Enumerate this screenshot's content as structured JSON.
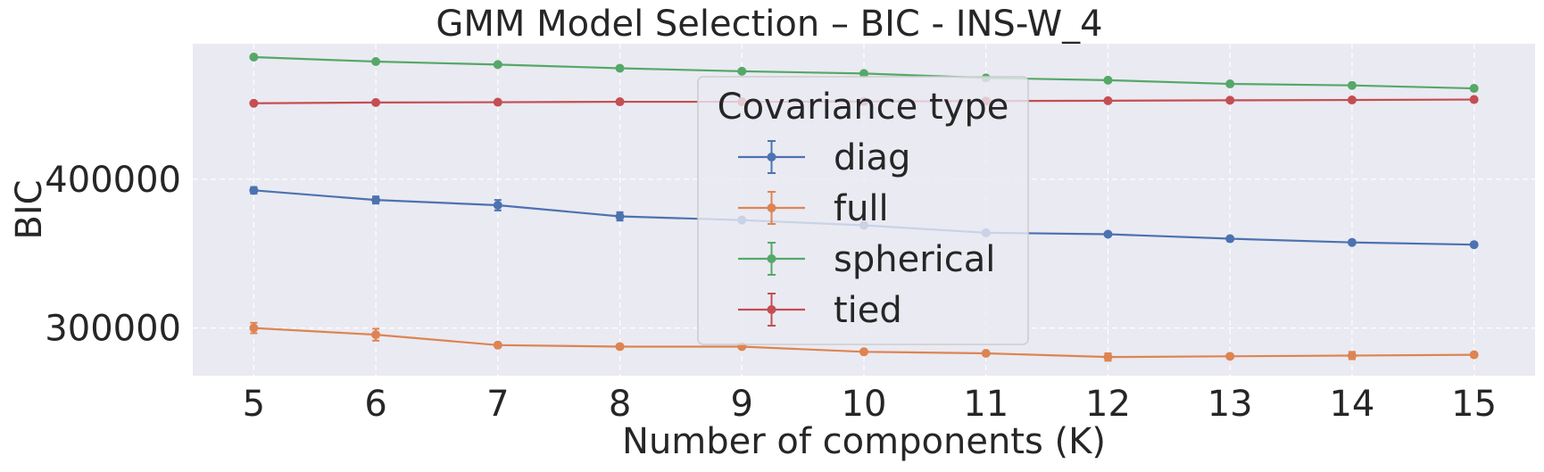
{
  "chart_data": {
    "type": "line",
    "title": "GMM Model Selection – BIC - INS-W_4",
    "xlabel": "Number of components (K)",
    "ylabel": "BIC",
    "x": [
      5,
      6,
      7,
      8,
      9,
      10,
      11,
      12,
      13,
      14,
      15
    ],
    "xlim": [
      4.5,
      15.5
    ],
    "ylim": [
      268000,
      491000
    ],
    "yticks": [
      300000,
      400000
    ],
    "grid": true,
    "legend": {
      "title": "Covariance type",
      "placement": "center"
    },
    "series": [
      {
        "name": "diag",
        "color": "#4c72b0",
        "values": [
          392500,
          386000,
          382500,
          375000,
          372500,
          369000,
          364000,
          363000,
          360000,
          357500,
          356000
        ],
        "errors": [
          2200,
          2400,
          3500,
          2800,
          1200,
          1200,
          1000,
          1200,
          1000,
          1000,
          1000
        ]
      },
      {
        "name": "full",
        "color": "#dd8452",
        "values": [
          300000,
          295500,
          288500,
          287500,
          287500,
          284000,
          283000,
          280500,
          281000,
          281500,
          282000
        ],
        "errors": [
          3500,
          4000,
          1500,
          1500,
          1000,
          1200,
          1000,
          2500,
          1200,
          2500,
          1200
        ]
      },
      {
        "name": "spherical",
        "color": "#55a868",
        "values": [
          482000,
          479000,
          477000,
          474500,
          472500,
          471000,
          468000,
          466500,
          464000,
          463000,
          461000
        ],
        "errors": [
          800,
          800,
          800,
          800,
          800,
          800,
          800,
          800,
          800,
          800,
          800
        ]
      },
      {
        "name": "tied",
        "color": "#c44e52",
        "values": [
          451000,
          451500,
          451700,
          452000,
          452000,
          452200,
          452500,
          452700,
          453000,
          453200,
          453500
        ],
        "errors": [
          600,
          600,
          600,
          600,
          600,
          600,
          600,
          600,
          600,
          600,
          600
        ]
      }
    ]
  }
}
